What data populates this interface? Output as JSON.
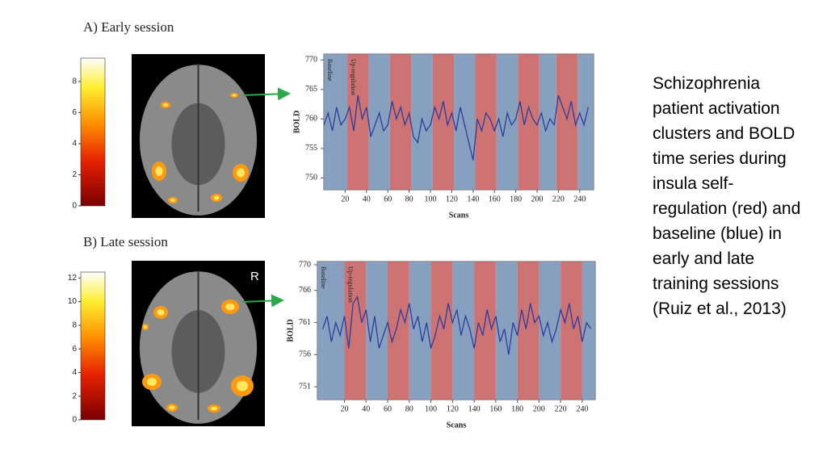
{
  "chart_data": [
    {
      "type": "line",
      "title": "A) Early session",
      "xlabel": "Scans",
      "ylabel": "BOLD",
      "xlim": [
        0,
        253
      ],
      "ylim": [
        748,
        771
      ],
      "xticks": [
        20,
        40,
        60,
        80,
        100,
        120,
        140,
        160,
        180,
        200,
        220,
        240
      ],
      "yticks": [
        750,
        755,
        760,
        765,
        770
      ],
      "x": [
        0,
        4,
        8,
        12,
        16,
        20,
        24,
        28,
        32,
        36,
        40,
        44,
        48,
        52,
        56,
        60,
        64,
        68,
        72,
        76,
        80,
        84,
        88,
        92,
        96,
        100,
        104,
        108,
        112,
        116,
        120,
        124,
        128,
        132,
        136,
        140,
        144,
        148,
        152,
        156,
        160,
        164,
        168,
        172,
        176,
        180,
        184,
        188,
        192,
        196,
        200,
        204,
        208,
        212,
        216,
        220,
        224,
        228,
        232,
        236,
        240,
        244,
        248
      ],
      "series": [
        {
          "color": "#2b3d9e",
          "values": [
            759,
            761,
            758,
            762,
            759,
            760,
            762,
            758,
            764,
            760,
            762,
            757,
            759,
            761,
            758,
            759,
            763,
            760,
            762,
            759,
            761,
            757,
            756,
            760,
            758,
            759,
            762,
            760,
            763,
            759,
            761,
            758,
            762,
            759,
            756,
            753,
            760,
            758,
            761,
            760,
            758,
            760,
            757,
            761,
            759,
            760,
            763,
            759,
            762,
            760,
            759,
            761,
            758,
            760,
            759,
            764,
            762,
            760,
            763,
            759,
            761,
            759,
            762
          ]
        }
      ],
      "shading": [
        {
          "label": "Baseline",
          "color": "#7b96b8",
          "ranges": [
            [
              0,
              22
            ],
            [
              42,
              62
            ],
            [
              82,
              102
            ],
            [
              122,
              142
            ],
            [
              162,
              182
            ],
            [
              202,
              218
            ],
            [
              238,
              253
            ]
          ]
        },
        {
          "label": "Up-regulation",
          "color": "#c86464",
          "ranges": [
            [
              22,
              42
            ],
            [
              62,
              82
            ],
            [
              102,
              122
            ],
            [
              142,
              162
            ],
            [
              182,
              202
            ],
            [
              218,
              238
            ]
          ]
        }
      ],
      "colorbar": {
        "lim": [
          0,
          9.5
        ],
        "ticks": [
          0,
          2,
          4,
          6,
          8
        ]
      }
    },
    {
      "type": "line",
      "title": "B) Late session",
      "xlabel": "Scans",
      "ylabel": "BOLD",
      "image_label": "R",
      "xlim": [
        -5,
        252
      ],
      "ylim": [
        749,
        770.5
      ],
      "xticks": [
        20,
        40,
        60,
        80,
        100,
        120,
        140,
        160,
        180,
        200,
        220,
        240
      ],
      "yticks": [
        751,
        756,
        761,
        766,
        770
      ],
      "x": [
        0,
        4,
        8,
        12,
        16,
        20,
        24,
        28,
        32,
        36,
        40,
        44,
        48,
        52,
        56,
        60,
        64,
        68,
        72,
        76,
        80,
        84,
        88,
        92,
        96,
        100,
        104,
        108,
        112,
        116,
        120,
        124,
        128,
        132,
        136,
        140,
        144,
        148,
        152,
        156,
        160,
        164,
        168,
        172,
        176,
        180,
        184,
        188,
        192,
        196,
        200,
        204,
        208,
        212,
        216,
        220,
        224,
        228,
        232,
        236,
        240,
        244,
        248
      ],
      "series": [
        {
          "color": "#2b3d9e",
          "values": [
            760,
            762,
            758,
            761,
            759,
            762,
            757,
            764,
            765,
            761,
            763,
            758,
            762,
            757,
            759,
            761,
            758,
            760,
            763,
            761,
            764,
            760,
            762,
            758,
            761,
            757,
            759,
            762,
            760,
            764,
            761,
            763,
            759,
            762,
            760,
            757,
            761,
            759,
            763,
            760,
            762,
            758,
            760,
            756,
            761,
            759,
            763,
            760,
            764,
            761,
            762,
            759,
            761,
            758,
            760,
            763,
            761,
            764,
            760,
            762,
            758,
            761,
            760
          ]
        }
      ],
      "shading": [
        {
          "label": "Baseline",
          "color": "#7b96b8",
          "ranges": [
            [
              -5,
              20
            ],
            [
              40,
              60
            ],
            [
              80,
              100
            ],
            [
              120,
              140
            ],
            [
              160,
              180
            ],
            [
              200,
              220
            ],
            [
              240,
              252
            ]
          ]
        },
        {
          "label": "Up-regulation",
          "color": "#c86464",
          "ranges": [
            [
              20,
              40
            ],
            [
              60,
              80
            ],
            [
              100,
              120
            ],
            [
              140,
              160
            ],
            [
              180,
              200
            ],
            [
              220,
              240
            ]
          ]
        }
      ],
      "colorbar": {
        "lim": [
          0,
          12.5
        ],
        "ticks": [
          0,
          2,
          4,
          6,
          8,
          10,
          12
        ]
      }
    }
  ],
  "caption": "Schizophrenia patient activation clusters and BOLD time series during insula self-regulation (red) and baseline (blue) in early and late training sessions (Ruiz et al., 2013)"
}
